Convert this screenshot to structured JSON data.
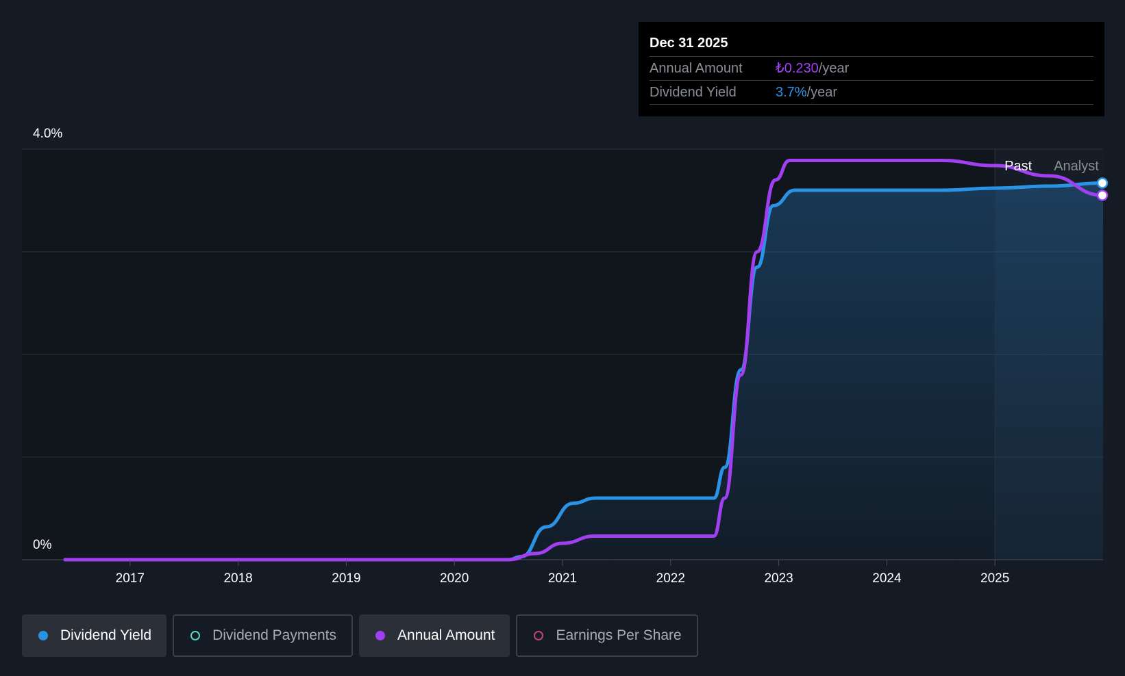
{
  "tooltip": {
    "date": "Dec 31 2025",
    "rows": [
      {
        "label": "Annual Amount",
        "value": "₺0.230",
        "unit": "/year",
        "color": "#a040f0"
      },
      {
        "label": "Dividend Yield",
        "value": "3.7%",
        "unit": "/year",
        "color": "#2b93e6"
      }
    ]
  },
  "regions": {
    "past": "Past",
    "analyst": "Analyst"
  },
  "legend": [
    {
      "label": "Dividend Yield",
      "color": "#2b93e6",
      "filled": true,
      "active": true
    },
    {
      "label": "Dividend Payments",
      "color": "#5fd3c4",
      "filled": false,
      "active": false
    },
    {
      "label": "Annual Amount",
      "color": "#a040f0",
      "filled": true,
      "active": true
    },
    {
      "label": "Earnings Per Share",
      "color": "#c2457a",
      "filled": false,
      "active": false
    }
  ],
  "chart_data": {
    "type": "line",
    "y_labels": [
      "4.0%",
      "0%"
    ],
    "ylim": [
      0,
      4.0
    ],
    "xlim": [
      2016.0,
      2026.0
    ],
    "x_ticks": [
      "2017",
      "2018",
      "2019",
      "2020",
      "2021",
      "2022",
      "2023",
      "2024",
      "2025"
    ],
    "past_boundary": 2025.0,
    "grid": true,
    "series": [
      {
        "name": "Dividend Yield",
        "color": "#2b93e6",
        "filled": true,
        "points": [
          [
            2016.4,
            0
          ],
          [
            2020.5,
            0
          ],
          [
            2020.62,
            0.03
          ],
          [
            2020.85,
            0.32
          ],
          [
            2021.1,
            0.55
          ],
          [
            2021.3,
            0.6
          ],
          [
            2022.4,
            0.6
          ],
          [
            2022.5,
            0.9
          ],
          [
            2022.65,
            1.85
          ],
          [
            2022.8,
            2.85
          ],
          [
            2022.95,
            3.45
          ],
          [
            2023.15,
            3.6
          ],
          [
            2023.5,
            3.6
          ],
          [
            2024.5,
            3.6
          ],
          [
            2025.0,
            3.62
          ],
          [
            2025.5,
            3.64
          ],
          [
            2026.0,
            3.67
          ]
        ]
      },
      {
        "name": "Annual Amount",
        "color": "#a040f0",
        "filled": false,
        "points": [
          [
            2016.4,
            0
          ],
          [
            2020.5,
            0
          ],
          [
            2020.75,
            0.06
          ],
          [
            2021.0,
            0.16
          ],
          [
            2021.3,
            0.23
          ],
          [
            2022.4,
            0.23
          ],
          [
            2022.5,
            0.6
          ],
          [
            2022.65,
            1.8
          ],
          [
            2022.8,
            3.0
          ],
          [
            2022.97,
            3.7
          ],
          [
            2023.1,
            3.89
          ],
          [
            2023.5,
            3.89
          ],
          [
            2024.5,
            3.89
          ],
          [
            2025.0,
            3.84
          ],
          [
            2025.5,
            3.74
          ],
          [
            2026.0,
            3.55
          ]
        ]
      }
    ]
  }
}
